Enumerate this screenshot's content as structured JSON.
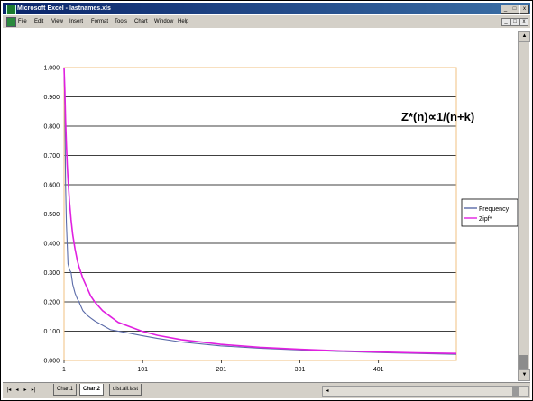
{
  "window": {
    "title": "Microsoft Excel - lastnames.xls",
    "minimize_glyph": "_",
    "restore_glyph": "□",
    "close_glyph": "x"
  },
  "menu": {
    "items": [
      "File",
      "Edit",
      "View",
      "Insert",
      "Format",
      "Tools",
      "Chart",
      "Window",
      "Help"
    ]
  },
  "sheet_tabs": {
    "nav": [
      "|◂",
      "◂",
      "▸",
      "▸|"
    ],
    "tabs": [
      "Chart1",
      "Chart2",
      "dist.all.last"
    ],
    "active": "Chart2"
  },
  "colors": {
    "frequency": "#5a6aa8",
    "zipf": "#e020e0",
    "plot_border": "#f0c080",
    "gridline": "#000000"
  },
  "chart_data": {
    "type": "line",
    "annotation": "Z*(n)∝1/(n+k)",
    "y_ticks": [
      "0.000",
      "0.100",
      "0.200",
      "0.300",
      "0.400",
      "0.500",
      "0.600",
      "0.700",
      "0.800",
      "0.900",
      "1.000"
    ],
    "x_ticks": [
      "1",
      "101",
      "201",
      "301",
      "401"
    ],
    "xlim": [
      1,
      500
    ],
    "ylim": [
      0,
      1
    ],
    "legend_position": "right",
    "series": [
      {
        "name": "Frequency",
        "x": [
          1,
          2,
          3,
          4,
          5,
          6,
          8,
          10,
          12,
          15,
          18,
          20,
          25,
          30,
          35,
          40,
          50,
          60,
          70,
          80,
          100,
          120,
          150,
          200,
          250,
          300,
          350,
          400,
          450,
          500
        ],
        "values": [
          1.0,
          0.87,
          0.6,
          0.47,
          0.4,
          0.33,
          0.31,
          0.3,
          0.26,
          0.23,
          0.21,
          0.2,
          0.17,
          0.155,
          0.145,
          0.135,
          0.12,
          0.105,
          0.1,
          0.095,
          0.085,
          0.075,
          0.063,
          0.05,
          0.042,
          0.036,
          0.031,
          0.027,
          0.024,
          0.021
        ]
      },
      {
        "name": "Zipf*",
        "x": [
          1,
          2,
          3,
          4,
          5,
          6,
          8,
          10,
          12,
          15,
          18,
          20,
          25,
          30,
          35,
          40,
          50,
          60,
          70,
          80,
          100,
          120,
          150,
          200,
          250,
          300,
          350,
          400,
          450,
          500
        ],
        "values": [
          1.0,
          0.92,
          0.82,
          0.74,
          0.67,
          0.62,
          0.54,
          0.48,
          0.43,
          0.38,
          0.34,
          0.32,
          0.28,
          0.25,
          0.22,
          0.2,
          0.17,
          0.15,
          0.13,
          0.12,
          0.1,
          0.086,
          0.071,
          0.055,
          0.045,
          0.038,
          0.033,
          0.029,
          0.026,
          0.024
        ]
      }
    ]
  }
}
